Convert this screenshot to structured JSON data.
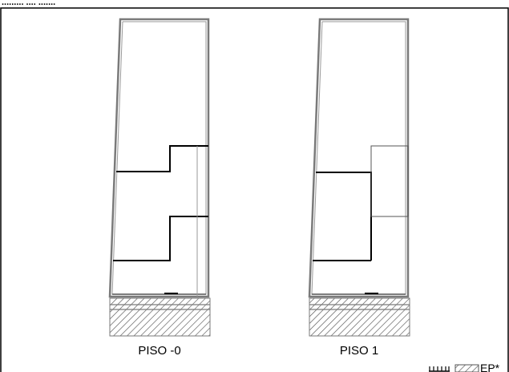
{
  "header": {
    "cropped_title": "......... .... ......."
  },
  "plans": [
    {
      "label": "PISO  -0"
    },
    {
      "label": "PISO  1"
    }
  ],
  "legend": {
    "hatch_label": "EP*"
  },
  "colors": {
    "outline": "#7a7a7a",
    "thick_line": "#000000",
    "thin_line": "#555555",
    "hatch": "#555555",
    "frame": "#000000",
    "background": "#ffffff"
  }
}
